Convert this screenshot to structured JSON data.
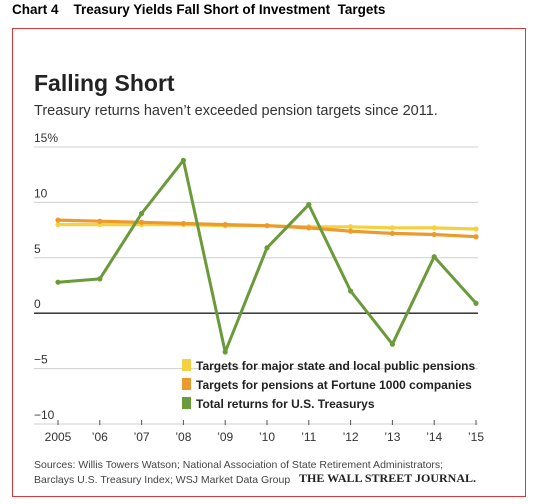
{
  "caption": "Chart 4    Treasury Yields Fall Short of Investment  Targets",
  "chart_data": {
    "type": "line",
    "title": "Falling Short",
    "subtitle": "Treasury returns haven’t exceeded pension targets since 2011.",
    "x_tick_labels": [
      "2005",
      "’06",
      "’07",
      "’08",
      "’09",
      "’10",
      "’11",
      "’12",
      "’13",
      "’14",
      "’15"
    ],
    "x": [
      2005,
      2006,
      2007,
      2008,
      2009,
      2010,
      2011,
      2012,
      2013,
      2014,
      2015
    ],
    "y_tick_labels": [
      "15%",
      "10",
      "5",
      "0",
      "−5",
      "−10"
    ],
    "y_ticks": [
      15,
      10,
      5,
      0,
      -5,
      -10
    ],
    "ylim": [
      -10,
      15
    ],
    "grid": "horizontal",
    "legend_position": "bottom-right",
    "series": [
      {
        "name": "Targets for major state and local public pensions",
        "color": "#f5d142",
        "values": [
          8.0,
          8.0,
          8.0,
          8.0,
          7.9,
          7.9,
          7.8,
          7.8,
          7.7,
          7.7,
          7.6
        ]
      },
      {
        "name": "Targets for pensions at Fortune 1000 companies",
        "color": "#ec9a2b",
        "values": [
          8.4,
          8.3,
          8.2,
          8.1,
          8.0,
          7.9,
          7.7,
          7.4,
          7.2,
          7.1,
          6.9
        ]
      },
      {
        "name": "Total returns for U.S. Treasurys",
        "color": "#6a9a3a",
        "values": [
          2.8,
          3.1,
          9.0,
          13.8,
          -3.5,
          5.9,
          9.8,
          2.0,
          -2.8,
          5.1,
          0.9
        ]
      }
    ],
    "sources": [
      "Sources: Willis Towers Watson; National Association of State Retirement Administrators;",
      "Barclays U.S. Treasury Index; WSJ Market Data Group"
    ],
    "publisher": "THE WALL STREET JOURNAL."
  }
}
